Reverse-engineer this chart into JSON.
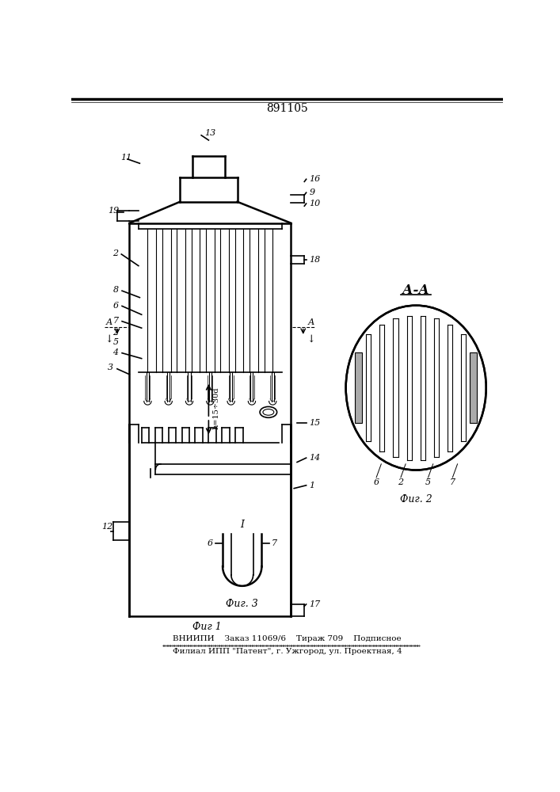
{
  "title": "891105",
  "bottom_text1": "ВНИИПИ    Заказ 11069/6    Тираж 709    Подписное",
  "bottom_text2": "Филиал ИПП \"Патент\", г. Ужгород, ул. Проектная, 4",
  "fig1_label": "Фиг 1",
  "fig2_label": "Фиг. 2",
  "fig3_label": "Фиг. 3",
  "bg_color": "#ffffff",
  "line_color": "#000000"
}
